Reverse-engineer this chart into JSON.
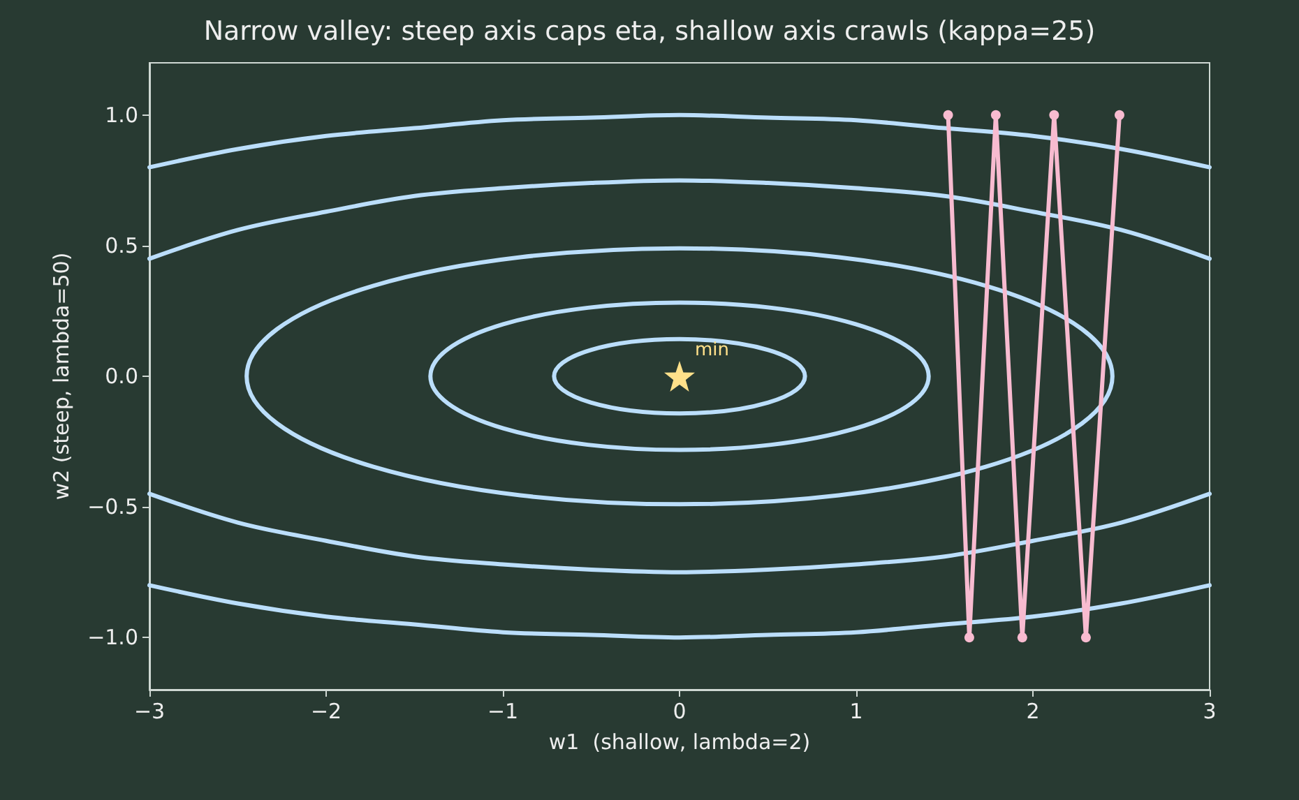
{
  "chart_data": {
    "type": "line",
    "title": "Narrow valley: steep axis caps eta, shallow axis crawls (kappa=25)",
    "xlabel": "w1  (shallow, lambda=2)",
    "ylabel": "w2 (steep, lambda=50)",
    "xlim": [
      -3,
      3
    ],
    "ylim": [
      -1.2,
      1.2
    ],
    "xticks": [
      {
        "value": -3,
        "label": "−3"
      },
      {
        "value": -2,
        "label": "−2"
      },
      {
        "value": -1,
        "label": "−1"
      },
      {
        "value": 0,
        "label": "0"
      },
      {
        "value": 1,
        "label": "1"
      },
      {
        "value": 2,
        "label": "2"
      },
      {
        "value": 3,
        "label": "3"
      }
    ],
    "yticks": [
      {
        "value": -1,
        "label": "−1.0"
      },
      {
        "value": -0.5,
        "label": "−0.5"
      },
      {
        "value": 0,
        "label": "0.0"
      },
      {
        "value": 0.5,
        "label": "0.5"
      },
      {
        "value": 1,
        "label": "1.0"
      }
    ],
    "grid": false,
    "line_style": "solid",
    "annotations": [
      {
        "text": "min",
        "x": 0,
        "y": 0
      }
    ],
    "series": [
      {
        "marker": "none",
        "color": "#bbdefb",
        "x": [
          -3,
          -2.5,
          -2,
          -1.5,
          -1,
          -0.5,
          0,
          0.5,
          1,
          1.5,
          2,
          2.5,
          3
        ],
        "values": [
          0.45,
          0.56,
          0.63,
          0.69,
          0.72,
          0.74,
          0.75,
          0.74,
          0.72,
          0.69,
          0.63,
          0.56,
          0.45
        ]
      },
      {
        "marker": "none",
        "color": "#bbdefb",
        "x": [
          -3,
          -2.5,
          -2,
          -1.5,
          -1,
          -0.5,
          0,
          0.5,
          1,
          1.5,
          2,
          2.5,
          3
        ],
        "values": [
          -0.45,
          -0.56,
          -0.63,
          -0.69,
          -0.72,
          -0.74,
          -0.75,
          -0.74,
          -0.72,
          -0.69,
          -0.63,
          -0.56,
          -0.45
        ]
      },
      {
        "marker": "none",
        "color": "#bbdefb",
        "x": [
          -3,
          -2.5,
          -2,
          -1.5,
          -1,
          -0.5,
          0,
          0.5,
          1,
          1.5,
          2,
          2.5,
          3
        ],
        "values": [
          0.8,
          0.87,
          0.92,
          0.95,
          0.98,
          0.99,
          1,
          0.99,
          0.98,
          0.95,
          0.92,
          0.87,
          0.8
        ]
      },
      {
        "marker": "none",
        "color": "#bbdefb",
        "x": [
          -3,
          -2.5,
          -2,
          -1.5,
          -1,
          -0.5,
          0,
          0.5,
          1,
          1.5,
          2,
          2.5,
          3
        ],
        "values": [
          -0.8,
          -0.87,
          -0.92,
          -0.95,
          -0.98,
          -0.99,
          -1,
          -0.99,
          -0.98,
          -0.95,
          -0.92,
          -0.87,
          -0.8
        ]
      },
      {
        "marker": "circle",
        "color": "#f8bbd0",
        "x": [
          2.49,
          2.3,
          2.12,
          1.94,
          1.79,
          1.64,
          1.52
        ],
        "values": [
          1,
          -1,
          1,
          -1,
          1,
          -1,
          1
        ]
      },
      {
        "type": "scatter",
        "marker": "star",
        "color": "#ffe08a",
        "x": [
          0
        ],
        "values": [
          0
        ]
      }
    ]
  }
}
